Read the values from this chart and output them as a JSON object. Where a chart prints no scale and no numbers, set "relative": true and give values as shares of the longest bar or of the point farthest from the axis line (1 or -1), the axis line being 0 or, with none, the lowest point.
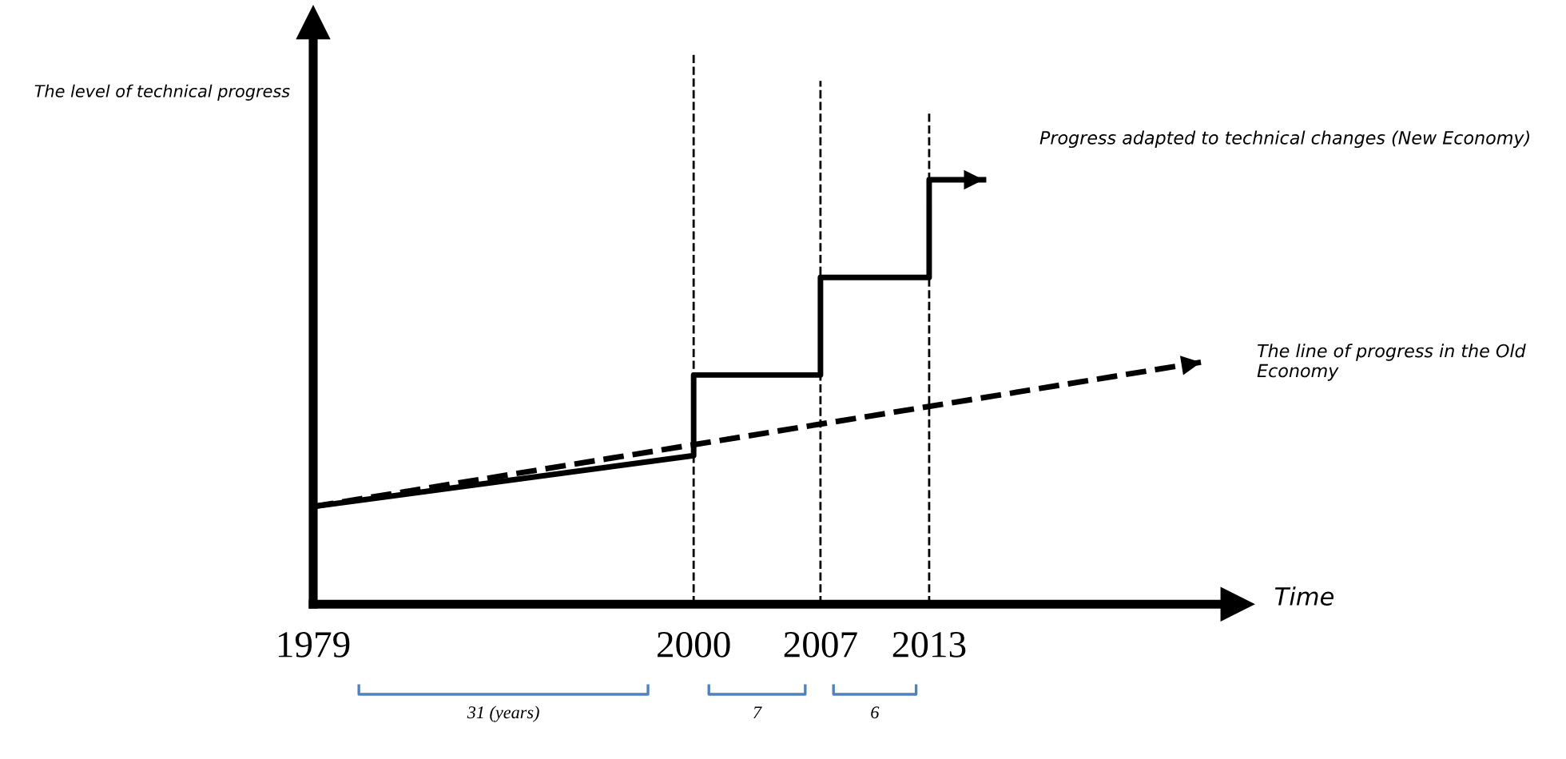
{
  "chart_data": {
    "type": "line",
    "relative": true,
    "xlabel": "Time",
    "ylabel": "The level of technical progress",
    "xlim": [
      1979,
      2030
    ],
    "xticks": [
      1979,
      2000,
      2007,
      2013
    ],
    "tick_labels": "x",
    "grid": false,
    "legend": false,
    "series": [
      {
        "name": "Progress adapted to technical changes (New Economy)",
        "color": "#000000",
        "line_style": "solid",
        "x": [
          1979,
          2000,
          2000,
          2007,
          2007,
          2013,
          2013,
          2016
        ],
        "values": [
          0.23,
          0.35,
          0.54,
          0.54,
          0.77,
          0.77,
          1.0,
          1.0
        ]
      },
      {
        "name": "The line of progress in the Old Economy",
        "color": "#000000",
        "line_style": "dashed",
        "x": [
          1979,
          2028
        ],
        "values": [
          0.23,
          0.57
        ]
      }
    ],
    "ref_lines": [
      {
        "axis": "x",
        "value": 2000,
        "line_style": "dashed",
        "color": "#000000"
      },
      {
        "axis": "x",
        "value": 2007,
        "line_style": "dashed",
        "color": "#000000"
      },
      {
        "axis": "x",
        "value": 2013,
        "line_style": "dashed",
        "color": "#000000"
      }
    ],
    "annotations": [
      "31 (years)",
      "7",
      "6"
    ]
  }
}
